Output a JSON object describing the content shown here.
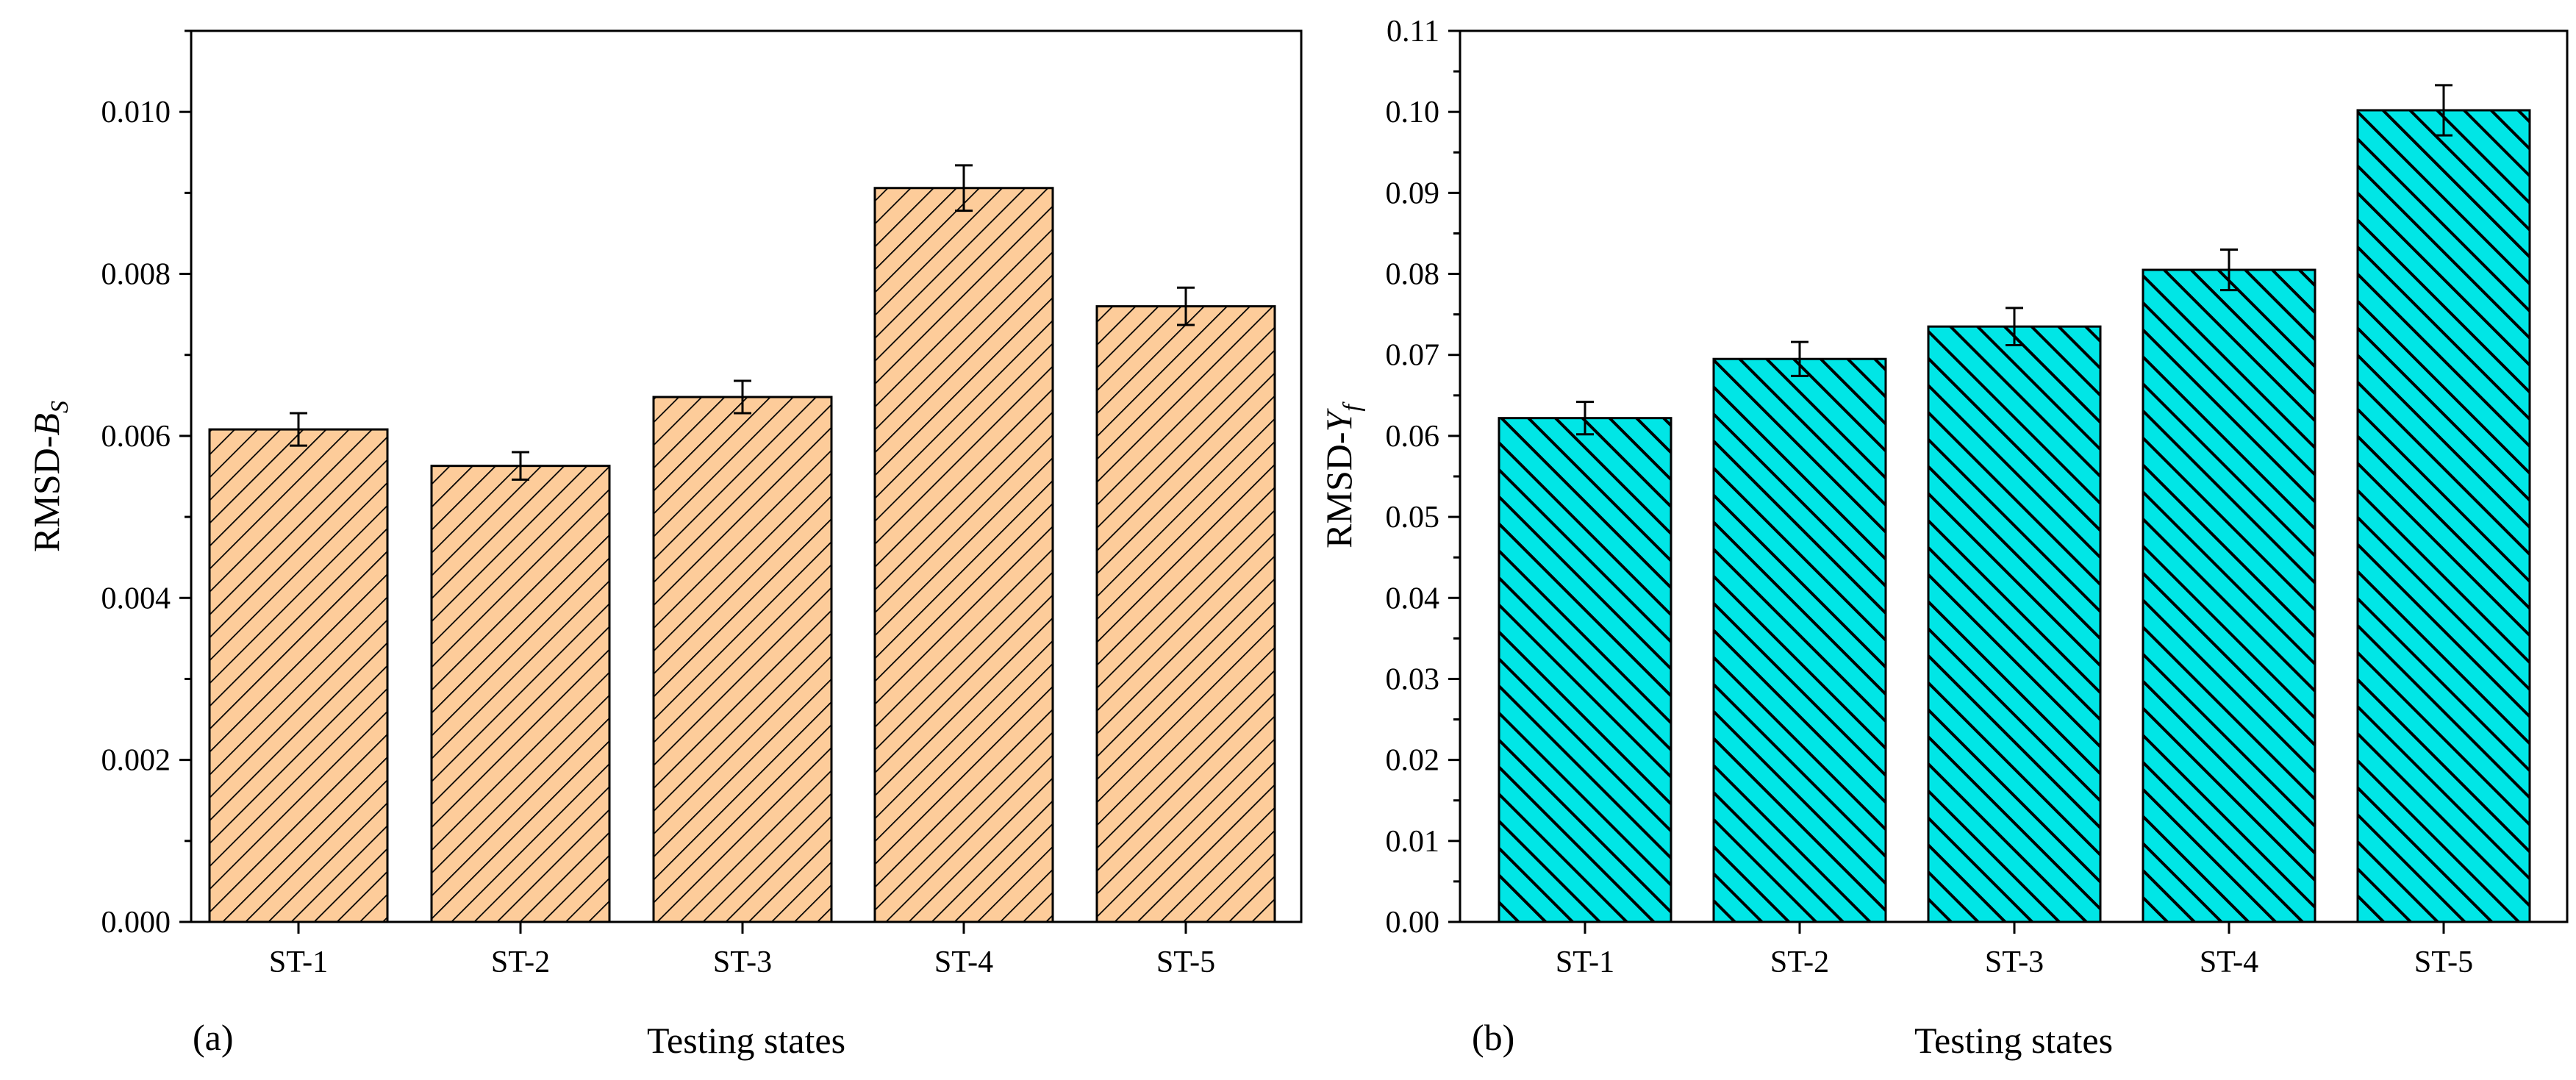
{
  "chart_data": [
    {
      "type": "bar",
      "panel_label": "(a)",
      "categories": [
        "ST-1",
        "ST-2",
        "ST-3",
        "ST-4",
        "ST-5"
      ],
      "values": [
        0.00608,
        0.00563,
        0.00648,
        0.00906,
        0.0076
      ],
      "errors": [
        0.0002,
        0.00017,
        0.0002,
        0.00028,
        0.00023
      ],
      "xlabel": "Testing states",
      "ylabel_main": "RMSD-",
      "ylabel_var": "B",
      "ylabel_sub": "S",
      "ylim": [
        0,
        0.011
      ],
      "yticks": [
        0.0,
        0.002,
        0.004,
        0.006,
        0.008,
        0.01
      ],
      "ytick_labels": [
        "0.000",
        "0.002",
        "0.004",
        "0.006",
        "0.008",
        "0.010"
      ],
      "bar_color": "#fdcc9a",
      "hatch": "forward-diagonal"
    },
    {
      "type": "bar",
      "panel_label": "(b)",
      "categories": [
        "ST-1",
        "ST-2",
        "ST-3",
        "ST-4",
        "ST-5"
      ],
      "values": [
        0.0622,
        0.0695,
        0.0735,
        0.0805,
        0.1002
      ],
      "errors": [
        0.002,
        0.0021,
        0.0023,
        0.0025,
        0.0031
      ],
      "xlabel": "Testing states",
      "ylabel_main": "RMSD-",
      "ylabel_var": "Y",
      "ylabel_sub": "f",
      "ylim": [
        0,
        0.11
      ],
      "yticks": [
        0.0,
        0.01,
        0.02,
        0.03,
        0.04,
        0.05,
        0.06,
        0.07,
        0.08,
        0.09,
        0.1,
        0.11
      ],
      "ytick_labels": [
        "0.00",
        "0.01",
        "0.02",
        "0.03",
        "0.04",
        "0.05",
        "0.06",
        "0.07",
        "0.08",
        "0.09",
        "0.10",
        "0.11"
      ],
      "bar_color": "#00e6e6",
      "hatch": "backward-diagonal"
    }
  ]
}
